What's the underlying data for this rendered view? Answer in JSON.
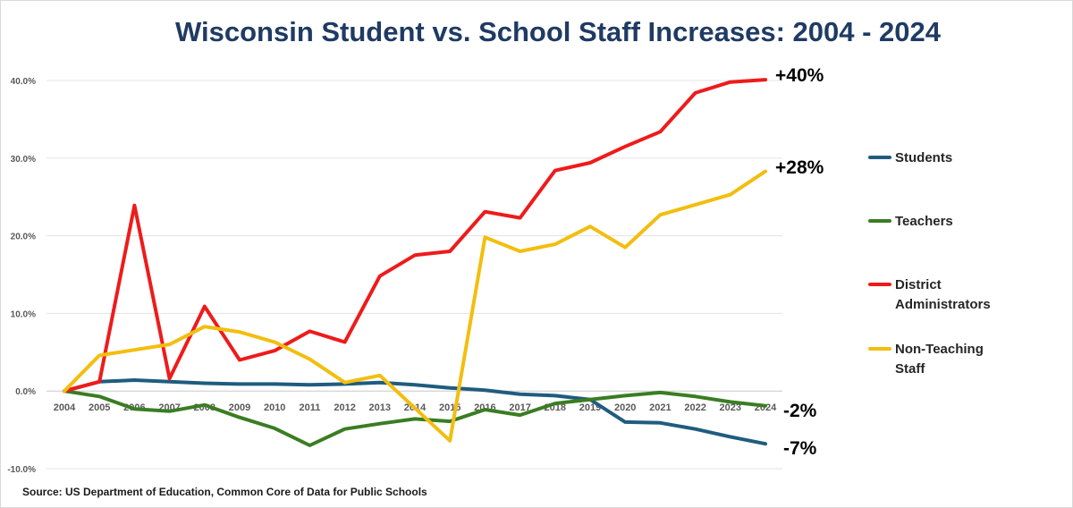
{
  "chart_data": {
    "type": "line",
    "title": "Wisconsin Student vs. School Staff Increases:  2004 - 2024",
    "source": "Source: US Department of Education, Common Core of Data for Public Schools",
    "categories": [
      "2004",
      "2005",
      "2006",
      "2007",
      "2008",
      "2009",
      "2010",
      "2011",
      "2012",
      "2013",
      "2014",
      "2015",
      "2016",
      "2017",
      "2018",
      "2019",
      "2020",
      "2021",
      "2022",
      "2023",
      "2024"
    ],
    "ylim": [
      -10,
      40
    ],
    "yticks": [
      -10,
      0,
      10,
      20,
      30,
      40
    ],
    "ytick_labels": [
      "-10.0%",
      "0.0%",
      "10.0%",
      "20.0%",
      "30.0%",
      "40.0%"
    ],
    "grid": true,
    "legend_position": "right",
    "series": [
      {
        "name": "Students",
        "color": "#1f5c7f",
        "values": [
          0,
          1.2,
          1.4,
          1.2,
          1.0,
          0.9,
          0.9,
          0.8,
          0.9,
          1.1,
          0.8,
          0.4,
          0.1,
          -0.4,
          -0.6,
          -1.1,
          -4.0,
          -4.1,
          -4.9,
          -5.9,
          -6.8
        ]
      },
      {
        "name": "Teachers",
        "color": "#3a7d22",
        "values": [
          0,
          -0.7,
          -2.3,
          -2.6,
          -1.8,
          -3.4,
          -4.8,
          -7.0,
          -4.9,
          -4.2,
          -3.6,
          -3.9,
          -2.4,
          -3.1,
          -1.6,
          -1.1,
          -0.6,
          -0.2,
          -0.7,
          -1.4,
          -1.9
        ]
      },
      {
        "name": "District Administrators",
        "color": "#ee1b1b",
        "values": [
          0,
          1.2,
          23.9,
          1.6,
          10.9,
          4.0,
          5.2,
          7.7,
          6.3,
          14.8,
          17.5,
          18.0,
          23.1,
          22.3,
          28.4,
          29.4,
          31.5,
          33.4,
          38.4,
          39.8,
          40.1
        ]
      },
      {
        "name": "Non-Teaching Staff",
        "color": "#f2be0f",
        "values": [
          0,
          4.6,
          5.3,
          6.0,
          8.3,
          7.6,
          6.3,
          4.1,
          1.1,
          2.0,
          -2.2,
          -6.4,
          19.8,
          18.0,
          18.9,
          21.2,
          18.5,
          22.7,
          24.0,
          25.3,
          28.3
        ]
      }
    ],
    "end_labels": [
      "+40%",
      "+28%",
      "-2%",
      "-7%"
    ],
    "legend": [
      {
        "lines": [
          "Students"
        ]
      },
      {
        "lines": [
          "Teachers"
        ]
      },
      {
        "lines": [
          "District",
          "Administrators"
        ]
      },
      {
        "lines": [
          "Non-Teaching",
          "Staff"
        ]
      }
    ]
  }
}
